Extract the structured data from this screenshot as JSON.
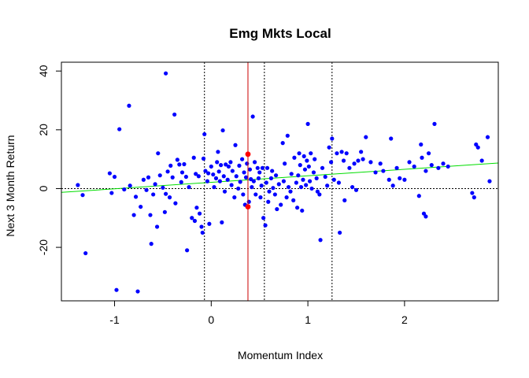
{
  "chart_data": {
    "type": "scatter",
    "title": "Emg Mkts Local",
    "xlabel": "Momentum Index",
    "ylabel": "Next 3 Month Return",
    "xlim": [
      -1.55,
      2.97
    ],
    "ylim": [
      -38.2,
      43.0
    ],
    "x_ticks": [
      -1,
      0,
      1,
      2
    ],
    "x_tick_labels": [
      "-1",
      "0",
      "1",
      "2"
    ],
    "y_ticks": [
      -20,
      0,
      20,
      40
    ],
    "y_tick_labels": [
      "-20",
      "0",
      "20",
      "40"
    ],
    "grid": false,
    "legend": "none",
    "colors": {
      "points": "#0000ff",
      "highlight": "#ff0000",
      "fit_line": "#00dd00",
      "current_line": "#cc0000",
      "reference_lines": "#000000"
    },
    "fit_line": {
      "x": [
        -1.55,
        2.97
      ],
      "y": [
        -1.3,
        8.7
      ]
    },
    "current_x": 0.38,
    "vertical_dotted_x": [
      -0.07,
      0.55,
      1.25
    ],
    "horizontal_dotted_y": 0,
    "highlighted_points": [
      {
        "x": 0.38,
        "y": 11.7
      },
      {
        "x": 0.38,
        "y": -6.2
      }
    ],
    "points": [
      {
        "x": -1.38,
        "y": 1.2
      },
      {
        "x": -1.33,
        "y": -2.2
      },
      {
        "x": -1.3,
        "y": -22.0
      },
      {
        "x": -1.05,
        "y": 5.2
      },
      {
        "x": -1.03,
        "y": -1.5
      },
      {
        "x": -1.0,
        "y": 4.0
      },
      {
        "x": -0.98,
        "y": -34.5
      },
      {
        "x": -0.95,
        "y": 20.2
      },
      {
        "x": -0.9,
        "y": -0.3
      },
      {
        "x": -0.85,
        "y": 28.2
      },
      {
        "x": -0.84,
        "y": 1.0
      },
      {
        "x": -0.8,
        "y": -9.0
      },
      {
        "x": -0.78,
        "y": -2.8
      },
      {
        "x": -0.76,
        "y": -35.0
      },
      {
        "x": -0.73,
        "y": -6.2
      },
      {
        "x": -0.7,
        "y": 3.0
      },
      {
        "x": -0.67,
        "y": -0.5
      },
      {
        "x": -0.65,
        "y": 3.8
      },
      {
        "x": -0.63,
        "y": -9.0
      },
      {
        "x": -0.62,
        "y": -18.8
      },
      {
        "x": -0.6,
        "y": -2.0
      },
      {
        "x": -0.58,
        "y": 1.5
      },
      {
        "x": -0.56,
        "y": -13.0
      },
      {
        "x": -0.55,
        "y": 12.0
      },
      {
        "x": -0.53,
        "y": 4.5
      },
      {
        "x": -0.5,
        "y": 0.3
      },
      {
        "x": -0.48,
        "y": -8.0
      },
      {
        "x": -0.47,
        "y": -1.8
      },
      {
        "x": -0.47,
        "y": 39.2
      },
      {
        "x": -0.45,
        "y": 5.8
      },
      {
        "x": -0.43,
        "y": -3.0
      },
      {
        "x": -0.42,
        "y": 7.8
      },
      {
        "x": -0.4,
        "y": 3.8
      },
      {
        "x": -0.38,
        "y": 25.2
      },
      {
        "x": -0.37,
        "y": -5.0
      },
      {
        "x": -0.35,
        "y": 9.8
      },
      {
        "x": -0.33,
        "y": 8.2
      },
      {
        "x": -0.31,
        "y": 2.2
      },
      {
        "x": -0.3,
        "y": 5.5
      },
      {
        "x": -0.28,
        "y": 8.3
      },
      {
        "x": -0.26,
        "y": 4.0
      },
      {
        "x": -0.25,
        "y": -21.0
      },
      {
        "x": -0.23,
        "y": 0.5
      },
      {
        "x": -0.2,
        "y": -10.0
      },
      {
        "x": -0.18,
        "y": 10.5
      },
      {
        "x": -0.17,
        "y": -11.0
      },
      {
        "x": -0.16,
        "y": 5.0
      },
      {
        "x": -0.15,
        "y": -6.5
      },
      {
        "x": -0.13,
        "y": 4.2
      },
      {
        "x": -0.12,
        "y": -8.5
      },
      {
        "x": -0.1,
        "y": -13.0
      },
      {
        "x": -0.09,
        "y": -15.0
      },
      {
        "x": -0.08,
        "y": 10.2
      },
      {
        "x": -0.07,
        "y": 18.5
      },
      {
        "x": -0.06,
        "y": 6.0
      },
      {
        "x": -0.04,
        "y": 2.5
      },
      {
        "x": -0.03,
        "y": 5.2
      },
      {
        "x": -0.02,
        "y": -12.0
      },
      {
        "x": 0.0,
        "y": 7.5
      },
      {
        "x": 0.02,
        "y": 4.8
      },
      {
        "x": 0.03,
        "y": 0.5
      },
      {
        "x": 0.05,
        "y": 3.5
      },
      {
        "x": 0.06,
        "y": 9.0
      },
      {
        "x": 0.07,
        "y": 12.5
      },
      {
        "x": 0.08,
        "y": 5.8
      },
      {
        "x": 0.09,
        "y": 2.5
      },
      {
        "x": 0.1,
        "y": 8.0
      },
      {
        "x": 0.11,
        "y": -11.5
      },
      {
        "x": 0.12,
        "y": 19.8
      },
      {
        "x": 0.13,
        "y": 4.2
      },
      {
        "x": 0.14,
        "y": -1.0
      },
      {
        "x": 0.15,
        "y": 8.2
      },
      {
        "x": 0.17,
        "y": 3.0
      },
      {
        "x": 0.18,
        "y": 7.5
      },
      {
        "x": 0.2,
        "y": 9.0
      },
      {
        "x": 0.21,
        "y": 1.2
      },
      {
        "x": 0.22,
        "y": 6.0
      },
      {
        "x": 0.24,
        "y": -3.0
      },
      {
        "x": 0.25,
        "y": 14.8
      },
      {
        "x": 0.26,
        "y": 4.2
      },
      {
        "x": 0.28,
        "y": 0.0
      },
      {
        "x": 0.29,
        "y": 7.8
      },
      {
        "x": 0.3,
        "y": 2.3
      },
      {
        "x": 0.32,
        "y": 10.0
      },
      {
        "x": 0.33,
        "y": -2.0
      },
      {
        "x": 0.34,
        "y": 5.5
      },
      {
        "x": 0.35,
        "y": -5.5
      },
      {
        "x": 0.36,
        "y": 3.8
      },
      {
        "x": 0.37,
        "y": 8.5
      },
      {
        "x": 0.39,
        "y": -4.5
      },
      {
        "x": 0.4,
        "y": 6.5
      },
      {
        "x": 0.41,
        "y": 3.2
      },
      {
        "x": 0.42,
        "y": 0.5
      },
      {
        "x": 0.43,
        "y": 24.5
      },
      {
        "x": 0.44,
        "y": 2.5
      },
      {
        "x": 0.45,
        "y": 9.0
      },
      {
        "x": 0.46,
        "y": -2.0
      },
      {
        "x": 0.48,
        "y": 7.0
      },
      {
        "x": 0.49,
        "y": 3.5
      },
      {
        "x": 0.5,
        "y": 5.5
      },
      {
        "x": 0.51,
        "y": -3.0
      },
      {
        "x": 0.52,
        "y": 1.0
      },
      {
        "x": 0.53,
        "y": 7.0
      },
      {
        "x": 0.54,
        "y": -10.0
      },
      {
        "x": 0.56,
        "y": -12.5
      },
      {
        "x": 0.57,
        "y": 2.0
      },
      {
        "x": 0.58,
        "y": 7.0
      },
      {
        "x": 0.59,
        "y": -4.5
      },
      {
        "x": 0.6,
        "y": -1.0
      },
      {
        "x": 0.62,
        "y": 3.5
      },
      {
        "x": 0.63,
        "y": 6.0
      },
      {
        "x": 0.64,
        "y": 0.2
      },
      {
        "x": 0.66,
        "y": -2.0
      },
      {
        "x": 0.67,
        "y": 4.5
      },
      {
        "x": 0.68,
        "y": -7.0
      },
      {
        "x": 0.7,
        "y": 1.5
      },
      {
        "x": 0.72,
        "y": -5.5
      },
      {
        "x": 0.74,
        "y": 15.5
      },
      {
        "x": 0.75,
        "y": 2.5
      },
      {
        "x": 0.76,
        "y": 8.5
      },
      {
        "x": 0.78,
        "y": -3.0
      },
      {
        "x": 0.79,
        "y": 18.0
      },
      {
        "x": 0.8,
        "y": 0.5
      },
      {
        "x": 0.82,
        "y": -1.0
      },
      {
        "x": 0.83,
        "y": 5.0
      },
      {
        "x": 0.85,
        "y": -4.0
      },
      {
        "x": 0.86,
        "y": 10.5
      },
      {
        "x": 0.88,
        "y": 2.0
      },
      {
        "x": 0.89,
        "y": -6.5
      },
      {
        "x": 0.9,
        "y": 4.5
      },
      {
        "x": 0.91,
        "y": 12.0
      },
      {
        "x": 0.92,
        "y": 8.0
      },
      {
        "x": 0.93,
        "y": 0.5
      },
      {
        "x": 0.94,
        "y": -7.5
      },
      {
        "x": 0.95,
        "y": 3.0
      },
      {
        "x": 0.96,
        "y": 11.0
      },
      {
        "x": 0.97,
        "y": 6.5
      },
      {
        "x": 0.98,
        "y": 1.2
      },
      {
        "x": 0.99,
        "y": 9.5
      },
      {
        "x": 1.0,
        "y": 22.0
      },
      {
        "x": 1.01,
        "y": 7.5
      },
      {
        "x": 1.02,
        "y": 2.5
      },
      {
        "x": 1.03,
        "y": 12.0
      },
      {
        "x": 1.04,
        "y": 0.0
      },
      {
        "x": 1.06,
        "y": 5.5
      },
      {
        "x": 1.07,
        "y": 10.0
      },
      {
        "x": 1.09,
        "y": 3.5
      },
      {
        "x": 1.1,
        "y": -1.0
      },
      {
        "x": 1.12,
        "y": -2.0
      },
      {
        "x": 1.13,
        "y": -17.5
      },
      {
        "x": 1.15,
        "y": 7.0
      },
      {
        "x": 1.18,
        "y": 4.0
      },
      {
        "x": 1.2,
        "y": 1.0
      },
      {
        "x": 1.22,
        "y": 14.0
      },
      {
        "x": 1.24,
        "y": 9.0
      },
      {
        "x": 1.25,
        "y": 17.0
      },
      {
        "x": 1.27,
        "y": 3.0
      },
      {
        "x": 1.3,
        "y": 12.0
      },
      {
        "x": 1.32,
        "y": 2.0
      },
      {
        "x": 1.33,
        "y": -15.0
      },
      {
        "x": 1.35,
        "y": 12.5
      },
      {
        "x": 1.37,
        "y": 9.5
      },
      {
        "x": 1.38,
        "y": -4.0
      },
      {
        "x": 1.4,
        "y": 12.0
      },
      {
        "x": 1.43,
        "y": 7.0
      },
      {
        "x": 1.46,
        "y": 0.5
      },
      {
        "x": 1.48,
        "y": 8.5
      },
      {
        "x": 1.5,
        "y": -0.5
      },
      {
        "x": 1.52,
        "y": 9.5
      },
      {
        "x": 1.55,
        "y": 12.5
      },
      {
        "x": 1.57,
        "y": 10.0
      },
      {
        "x": 1.6,
        "y": 17.5
      },
      {
        "x": 1.65,
        "y": 9.0
      },
      {
        "x": 1.7,
        "y": 5.5
      },
      {
        "x": 1.75,
        "y": 8.5
      },
      {
        "x": 1.78,
        "y": 6.0
      },
      {
        "x": 1.84,
        "y": 3.0
      },
      {
        "x": 1.86,
        "y": 17.0
      },
      {
        "x": 1.88,
        "y": 1.0
      },
      {
        "x": 1.92,
        "y": 7.0
      },
      {
        "x": 1.95,
        "y": 3.5
      },
      {
        "x": 2.0,
        "y": 3.0
      },
      {
        "x": 2.05,
        "y": 9.0
      },
      {
        "x": 2.1,
        "y": 7.5
      },
      {
        "x": 2.15,
        "y": -2.5
      },
      {
        "x": 2.17,
        "y": 15.0
      },
      {
        "x": 2.18,
        "y": 10.5
      },
      {
        "x": 2.2,
        "y": -8.5
      },
      {
        "x": 2.22,
        "y": -9.5
      },
      {
        "x": 2.22,
        "y": 6.0
      },
      {
        "x": 2.25,
        "y": 12.0
      },
      {
        "x": 2.28,
        "y": 8.0
      },
      {
        "x": 2.31,
        "y": 22.0
      },
      {
        "x": 2.35,
        "y": 7.0
      },
      {
        "x": 2.4,
        "y": 8.5
      },
      {
        "x": 2.45,
        "y": 7.5
      },
      {
        "x": 2.7,
        "y": -1.5
      },
      {
        "x": 2.72,
        "y": -3.0
      },
      {
        "x": 2.74,
        "y": 15.0
      },
      {
        "x": 2.76,
        "y": 14.0
      },
      {
        "x": 2.8,
        "y": 9.5
      },
      {
        "x": 2.86,
        "y": 17.5
      },
      {
        "x": 2.88,
        "y": 2.5
      }
    ]
  }
}
